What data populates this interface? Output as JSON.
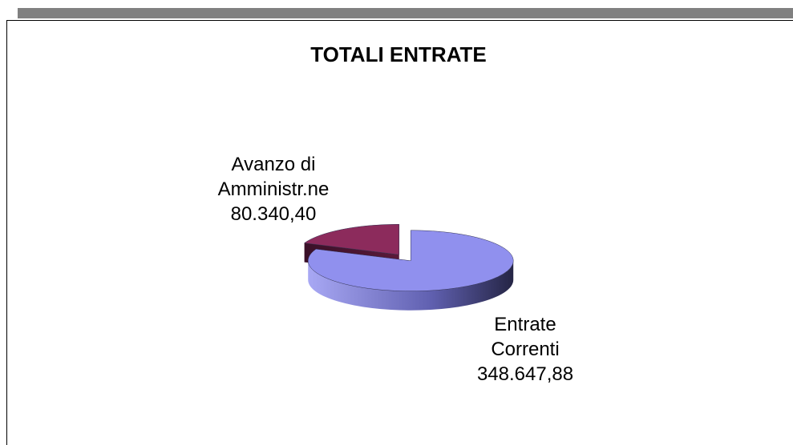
{
  "chart_data": {
    "type": "pie",
    "title": "TOTALI ENTRATE",
    "categories": [
      "Avanzo di Amministr.ne",
      "Entrate Correnti"
    ],
    "values": [
      80340.4,
      348647.88
    ],
    "value_labels": [
      "80.340,40",
      "348.647,88"
    ],
    "colors": [
      "#8c2b5c",
      "#9090ee"
    ]
  }
}
